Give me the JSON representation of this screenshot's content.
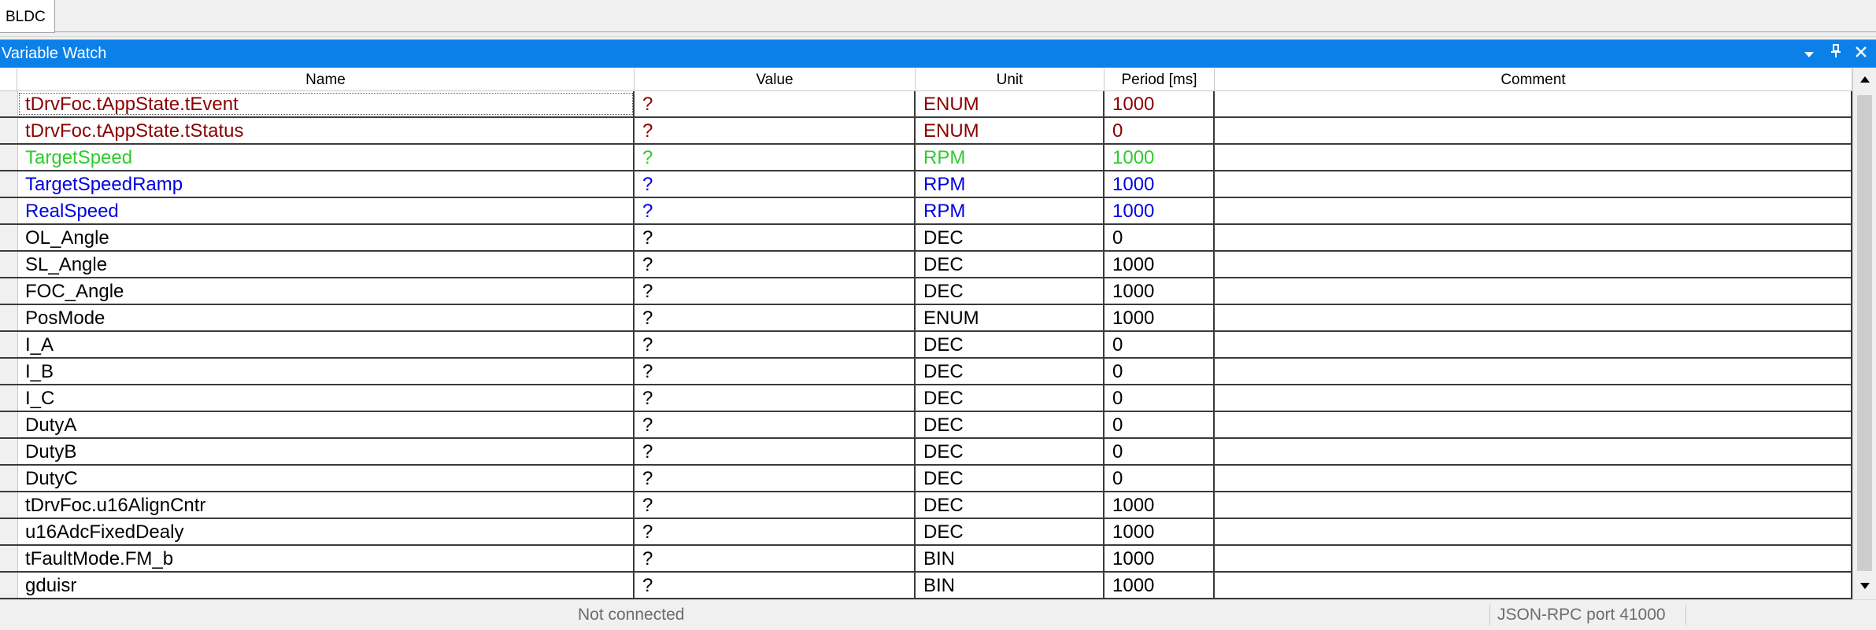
{
  "tabs": [
    {
      "label": "BLDC"
    }
  ],
  "panel": {
    "title": "Variable Watch"
  },
  "columns": [
    "Name",
    "Value",
    "Unit",
    "Period [ms]",
    "Comment"
  ],
  "colors": {
    "dark_red": "#8b0000",
    "green": "#2ecc2e",
    "blue": "#0000e0",
    "black": "#000000",
    "titlebar": "#0a80e8"
  },
  "rows": [
    {
      "name": "tDrvFoc.tAppState.tEvent",
      "value": "?",
      "unit": "ENUM",
      "period": "1000",
      "comment": "",
      "color": "dark_red"
    },
    {
      "name": "tDrvFoc.tAppState.tStatus",
      "value": "?",
      "unit": "ENUM",
      "period": "0",
      "comment": "",
      "color": "dark_red"
    },
    {
      "name": "TargetSpeed",
      "value": "?",
      "unit": "RPM",
      "period": "1000",
      "comment": "",
      "color": "green"
    },
    {
      "name": "TargetSpeedRamp",
      "value": "?",
      "unit": "RPM",
      "period": "1000",
      "comment": "",
      "color": "blue"
    },
    {
      "name": "RealSpeed",
      "value": "?",
      "unit": "RPM",
      "period": "1000",
      "comment": "",
      "color": "blue"
    },
    {
      "name": "OL_Angle",
      "value": "?",
      "unit": "DEC",
      "period": "0",
      "comment": "",
      "color": "black"
    },
    {
      "name": "SL_Angle",
      "value": "?",
      "unit": "DEC",
      "period": "1000",
      "comment": "",
      "color": "black"
    },
    {
      "name": "FOC_Angle",
      "value": "?",
      "unit": "DEC",
      "period": "1000",
      "comment": "",
      "color": "black"
    },
    {
      "name": "PosMode",
      "value": "?",
      "unit": "ENUM",
      "period": "1000",
      "comment": "",
      "color": "black"
    },
    {
      "name": "I_A",
      "value": "?",
      "unit": "DEC",
      "period": "0",
      "comment": "",
      "color": "black"
    },
    {
      "name": "I_B",
      "value": "?",
      "unit": "DEC",
      "period": "0",
      "comment": "",
      "color": "black"
    },
    {
      "name": "I_C",
      "value": "?",
      "unit": "DEC",
      "period": "0",
      "comment": "",
      "color": "black"
    },
    {
      "name": "DutyA",
      "value": "?",
      "unit": "DEC",
      "period": "0",
      "comment": "",
      "color": "black"
    },
    {
      "name": "DutyB",
      "value": "?",
      "unit": "DEC",
      "period": "0",
      "comment": "",
      "color": "black"
    },
    {
      "name": "DutyC",
      "value": "?",
      "unit": "DEC",
      "period": "0",
      "comment": "",
      "color": "black"
    },
    {
      "name": "tDrvFoc.u16AlignCntr",
      "value": "?",
      "unit": "DEC",
      "period": "1000",
      "comment": "",
      "color": "black"
    },
    {
      "name": "u16AdcFixedDealy",
      "value": "?",
      "unit": "DEC",
      "period": "1000",
      "comment": "",
      "color": "black"
    },
    {
      "name": "tFaultMode.FM_b",
      "value": "?",
      "unit": "BIN",
      "period": "1000",
      "comment": "",
      "color": "black"
    },
    {
      "name": "gduisr",
      "value": "?",
      "unit": "BIN",
      "period": "1000",
      "comment": "",
      "color": "black"
    }
  ],
  "status": {
    "connection": "Not connected",
    "port": "JSON-RPC port 41000"
  }
}
